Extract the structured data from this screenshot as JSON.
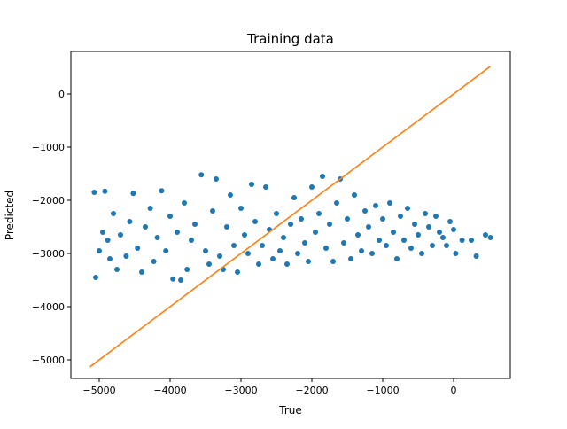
{
  "chart_data": {
    "type": "scatter",
    "title": "Training data",
    "xlabel": "True",
    "ylabel": "Predicted",
    "xlim": [
      -5400,
      800
    ],
    "ylim": [
      -5350,
      800
    ],
    "xticks": [
      -5000,
      -4000,
      -3000,
      -2000,
      -1000,
      0
    ],
    "yticks": [
      -5000,
      -4000,
      -3000,
      -2000,
      -1000,
      0
    ],
    "xtick_labels": [
      "−5000",
      "−4000",
      "−3000",
      "−2000",
      "−1000",
      "0"
    ],
    "ytick_labels": [
      "−5000",
      "−4000",
      "−3000",
      "−2000",
      "−1000",
      "0"
    ],
    "grid": false,
    "colors": {
      "scatter": "#1f77b4",
      "line": "#ff7f0e"
    },
    "series": [
      {
        "type": "scatter",
        "points": [
          [
            -5070,
            -1850
          ],
          [
            -5050,
            -3450
          ],
          [
            -5000,
            -2950
          ],
          [
            -4950,
            -2600
          ],
          [
            -4920,
            -1830
          ],
          [
            -4880,
            -2750
          ],
          [
            -4850,
            -3100
          ],
          [
            -4800,
            -2250
          ],
          [
            -4750,
            -3300
          ],
          [
            -4700,
            -2650
          ],
          [
            -4620,
            -3050
          ],
          [
            -4570,
            -2400
          ],
          [
            -4520,
            -1870
          ],
          [
            -4460,
            -2900
          ],
          [
            -4400,
            -3350
          ],
          [
            -4350,
            -2500
          ],
          [
            -4280,
            -2150
          ],
          [
            -4230,
            -3150
          ],
          [
            -4180,
            -2700
          ],
          [
            -4120,
            -1820
          ],
          [
            -4060,
            -2950
          ],
          [
            -4000,
            -2300
          ],
          [
            -3960,
            -3480
          ],
          [
            -3900,
            -2600
          ],
          [
            -3850,
            -3500
          ],
          [
            -3800,
            -2050
          ],
          [
            -3760,
            -3300
          ],
          [
            -3700,
            -2750
          ],
          [
            -3650,
            -2450
          ],
          [
            -3560,
            -1520
          ],
          [
            -3500,
            -2950
          ],
          [
            -3450,
            -3200
          ],
          [
            -3400,
            -2200
          ],
          [
            -3350,
            -1600
          ],
          [
            -3300,
            -3050
          ],
          [
            -3250,
            -3300
          ],
          [
            -3200,
            -2500
          ],
          [
            -3150,
            -1900
          ],
          [
            -3100,
            -2850
          ],
          [
            -3050,
            -3350
          ],
          [
            -3000,
            -2150
          ],
          [
            -2950,
            -2650
          ],
          [
            -2900,
            -3000
          ],
          [
            -2850,
            -1700
          ],
          [
            -2800,
            -2400
          ],
          [
            -2750,
            -3200
          ],
          [
            -2700,
            -2850
          ],
          [
            -2650,
            -1750
          ],
          [
            -2600,
            -2550
          ],
          [
            -2550,
            -3100
          ],
          [
            -2500,
            -2250
          ],
          [
            -2450,
            -2950
          ],
          [
            -2400,
            -2700
          ],
          [
            -2350,
            -3200
          ],
          [
            -2300,
            -2450
          ],
          [
            -2250,
            -1950
          ],
          [
            -2200,
            -3000
          ],
          [
            -2150,
            -2350
          ],
          [
            -2100,
            -2800
          ],
          [
            -2050,
            -3150
          ],
          [
            -2000,
            -1750
          ],
          [
            -1950,
            -2600
          ],
          [
            -1900,
            -2250
          ],
          [
            -1850,
            -1550
          ],
          [
            -1800,
            -2900
          ],
          [
            -1750,
            -2450
          ],
          [
            -1700,
            -3150
          ],
          [
            -1650,
            -2050
          ],
          [
            -1600,
            -1600
          ],
          [
            -1550,
            -2800
          ],
          [
            -1500,
            -2350
          ],
          [
            -1450,
            -3100
          ],
          [
            -1400,
            -1900
          ],
          [
            -1350,
            -2650
          ],
          [
            -1300,
            -2950
          ],
          [
            -1250,
            -2200
          ],
          [
            -1200,
            -2500
          ],
          [
            -1150,
            -3000
          ],
          [
            -1100,
            -2100
          ],
          [
            -1050,
            -2750
          ],
          [
            -1000,
            -2350
          ],
          [
            -950,
            -2850
          ],
          [
            -900,
            -2050
          ],
          [
            -850,
            -2600
          ],
          [
            -800,
            -3100
          ],
          [
            -750,
            -2300
          ],
          [
            -700,
            -2750
          ],
          [
            -650,
            -2150
          ],
          [
            -600,
            -2900
          ],
          [
            -550,
            -2450
          ],
          [
            -500,
            -2650
          ],
          [
            -450,
            -3000
          ],
          [
            -400,
            -2250
          ],
          [
            -350,
            -2500
          ],
          [
            -300,
            -2850
          ],
          [
            -250,
            -2300
          ],
          [
            -200,
            -2600
          ],
          [
            -150,
            -2700
          ],
          [
            -100,
            -2850
          ],
          [
            -50,
            -2400
          ],
          [
            0,
            -2550
          ],
          [
            30,
            -3000
          ],
          [
            120,
            -2750
          ],
          [
            250,
            -2750
          ],
          [
            320,
            -3050
          ],
          [
            450,
            -2650
          ],
          [
            520,
            -2700
          ]
        ]
      },
      {
        "type": "line",
        "points": [
          [
            -5130,
            -5130
          ],
          [
            520,
            520
          ]
        ]
      }
    ]
  }
}
